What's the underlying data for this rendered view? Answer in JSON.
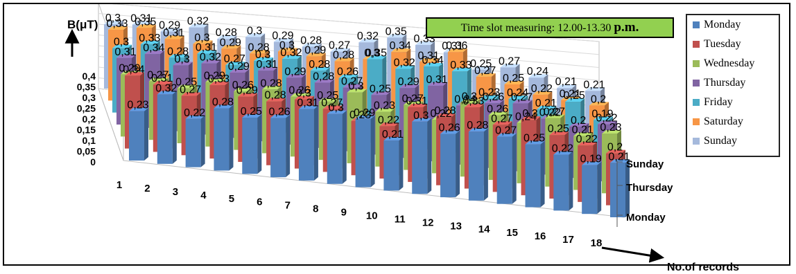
{
  "chart_data": {
    "type": "bar",
    "title": "Time slot measuring: 12.00-13.30 p.m.",
    "title_main": "Time slot measuring: 12.00-13.30",
    "title_suffix": "p.m.",
    "ylabel": "B(μT)",
    "xlabel": "No.of records",
    "ylim": [
      0,
      0.4
    ],
    "y_ticks": [
      "0",
      "0,05",
      "0,1",
      "0,15",
      "0,2",
      "0,25",
      "0,3",
      "0,35",
      "0,4"
    ],
    "categories": [
      "1",
      "2",
      "3",
      "4",
      "5",
      "6",
      "7",
      "8",
      "9",
      "10",
      "11",
      "12",
      "13",
      "14",
      "15",
      "16",
      "17",
      "18"
    ],
    "depth_labels": [
      "Sunday",
      "Thursday",
      "Monday"
    ],
    "legend_position": "right",
    "series": [
      {
        "name": "Monday",
        "color": "#4f81bd",
        "values": [
          0.23,
          0.32,
          0.22,
          0.28,
          0.25,
          0.26,
          0.31,
          0.3,
          0.29,
          0.21,
          0.3,
          0.26,
          0.28,
          0.27,
          0.25,
          0.22,
          0.19,
          0.21
        ]
      },
      {
        "name": "Tuesday",
        "color": "#c0504d",
        "values": [
          0.34,
          0.31,
          0.27,
          0.33,
          0.29,
          0.28,
          0.3,
          0.27,
          0.23,
          0.22,
          0.31,
          0.28,
          0.33,
          0.27,
          0.3,
          0.25,
          0.22,
          0.2
        ]
      },
      {
        "name": "Wednesday",
        "color": "#9bbb59",
        "values": [
          0.29,
          0.27,
          0.25,
          0.29,
          0.26,
          0.28,
          0.26,
          0.25,
          0.3,
          0.23,
          0.27,
          0.22,
          0.3,
          0.26,
          0.24,
          0.27,
          0.21,
          0.23
        ]
      },
      {
        "name": "Thursday",
        "color": "#8064a2",
        "values": [
          0.31,
          0.34,
          0.3,
          0.32,
          0.29,
          0.31,
          0.29,
          0.28,
          0.27,
          0.25,
          0.29,
          0.31,
          0.24,
          0.26,
          0.27,
          0.22,
          0.2,
          0.22
        ]
      },
      {
        "name": "Friday",
        "color": "#4bacc6",
        "values": [
          0.3,
          0.33,
          0.28,
          0.31,
          0.27,
          0.3,
          0.32,
          0.28,
          0.26,
          0.35,
          0.32,
          0.34,
          0.33,
          0.23,
          0.24,
          0.21,
          0.25,
          0.19
        ]
      },
      {
        "name": "Saturday",
        "color": "#f79646",
        "values": [
          0.33,
          0.35,
          0.31,
          0.3,
          0.29,
          0.28,
          0.3,
          0.29,
          0.28,
          0.3,
          0.34,
          0.31,
          0.36,
          0.27,
          0.25,
          0.22,
          0.21,
          0.2
        ]
      },
      {
        "name": "Sunday",
        "color": "#a5b9dc",
        "values": [
          0.3,
          0.31,
          0.29,
          0.32,
          0.28,
          0.3,
          0.29,
          0.28,
          0.27,
          0.32,
          0.35,
          0.33,
          0.31,
          0.25,
          0.27,
          0.24,
          0.21,
          0.21
        ]
      }
    ]
  }
}
